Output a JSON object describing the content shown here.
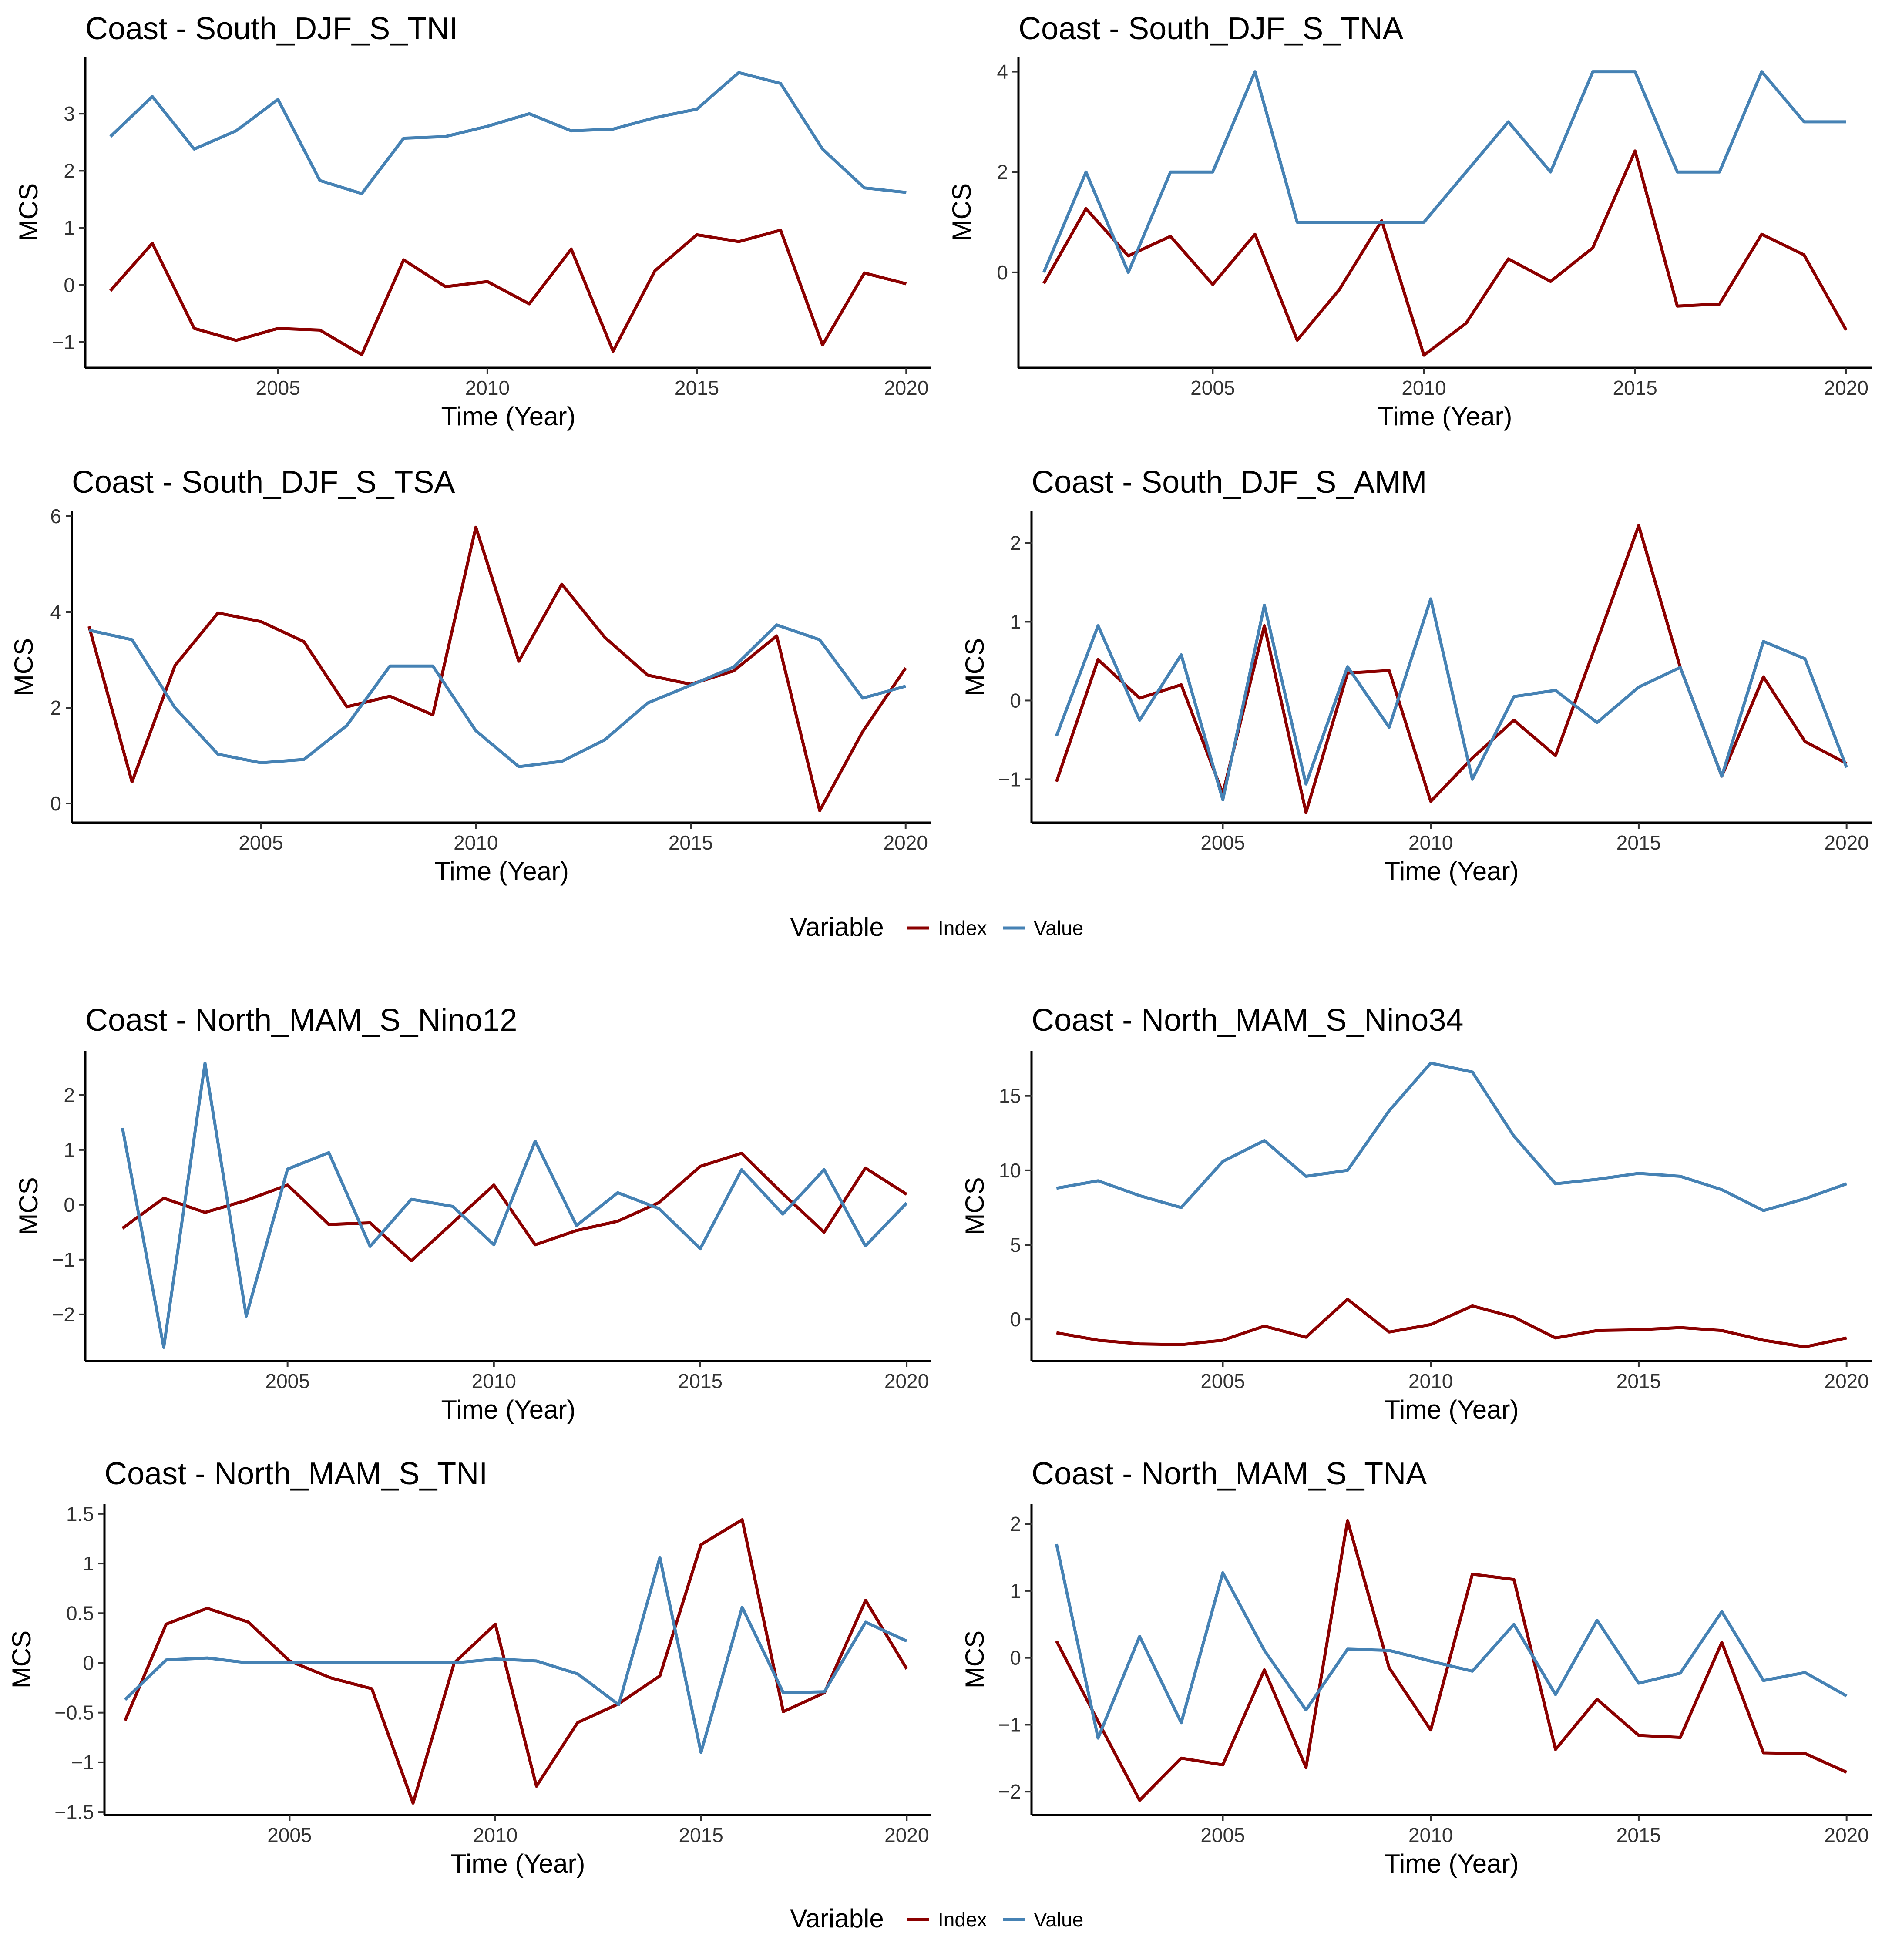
{
  "colors": {
    "Index": "#8b0000",
    "Value": "#4682b4"
  },
  "legends": [
    {
      "title": "Variable",
      "items": [
        {
          "name": "Index",
          "label": "Index"
        },
        {
          "name": "Value",
          "label": "Value"
        }
      ]
    },
    {
      "title": "Variable",
      "items": [
        {
          "name": "Index",
          "label": "Index"
        },
        {
          "name": "Value",
          "label": "Value"
        }
      ]
    }
  ],
  "chart_data": [
    {
      "type": "line",
      "title": "Coast - South_DJF_S_TNI",
      "xlabel": "Time (Year)",
      "ylabel": "MCS",
      "xlim": [
        2000.4,
        2020.6
      ],
      "ylim": [
        -1.45,
        4.0
      ],
      "xticks": [
        2005,
        2010,
        2015,
        2020
      ],
      "yticks": [
        -1,
        0,
        1,
        2,
        3
      ],
      "ytick_labels": [
        "−1",
        "0",
        "1",
        "2",
        "3"
      ],
      "x": [
        2001,
        2002,
        2003,
        2004,
        2005,
        2006,
        2007,
        2008,
        2009,
        2010,
        2011,
        2012,
        2013,
        2014,
        2015,
        2016,
        2017,
        2018,
        2019,
        2020
      ],
      "series": [
        {
          "name": "Index",
          "values": [
            -0.1,
            0.73,
            -0.76,
            -0.97,
            -0.76,
            -0.79,
            -1.22,
            0.44,
            -0.03,
            0.06,
            -0.33,
            0.63,
            -1.16,
            0.25,
            0.88,
            0.76,
            0.96,
            -1.05,
            0.21,
            0.02
          ]
        },
        {
          "name": "Value",
          "values": [
            2.6,
            3.3,
            2.38,
            2.7,
            3.25,
            1.83,
            1.6,
            2.57,
            2.6,
            2.78,
            3.0,
            2.7,
            2.73,
            2.93,
            3.08,
            3.72,
            3.53,
            2.38,
            1.7,
            1.62
          ]
        }
      ]
    },
    {
      "type": "line",
      "title": "Coast - South_DJF_S_TNA",
      "xlabel": "Time (Year)",
      "ylabel": "MCS",
      "xlim": [
        2000.4,
        2020.6
      ],
      "ylim": [
        -1.9,
        4.3
      ],
      "xticks": [
        2005,
        2010,
        2015,
        2020
      ],
      "yticks": [
        0,
        2,
        4
      ],
      "ytick_labels": [
        "0",
        "2",
        "4"
      ],
      "x": [
        2001,
        2002,
        2003,
        2004,
        2005,
        2006,
        2007,
        2008,
        2009,
        2010,
        2011,
        2012,
        2013,
        2014,
        2015,
        2016,
        2017,
        2018,
        2019,
        2020
      ],
      "series": [
        {
          "name": "Index",
          "values": [
            -0.22,
            1.27,
            0.33,
            0.72,
            -0.24,
            0.76,
            -1.35,
            -0.34,
            1.03,
            -1.65,
            -1.01,
            0.27,
            -0.18,
            0.49,
            2.42,
            -0.67,
            -0.63,
            0.76,
            0.35,
            -1.15
          ]
        },
        {
          "name": "Value",
          "values": [
            0,
            2,
            0,
            2,
            2,
            4,
            1,
            1,
            1,
            1,
            2,
            3,
            2,
            4,
            4,
            2,
            2,
            4,
            3,
            3
          ]
        }
      ]
    },
    {
      "type": "line",
      "title": "Coast - South_DJF_S_TSA",
      "xlabel": "Time (Year)",
      "ylabel": "MCS",
      "xlim": [
        2000.6,
        2020.6
      ],
      "ylim": [
        -0.4,
        6.1
      ],
      "xticks": [
        2005,
        2010,
        2015,
        2020
      ],
      "yticks": [
        0,
        2,
        4,
        6
      ],
      "ytick_labels": [
        "0",
        "2",
        "4",
        "6"
      ],
      "x": [
        2001,
        2002,
        2003,
        2004,
        2005,
        2006,
        2007,
        2008,
        2009,
        2010,
        2011,
        2012,
        2013,
        2014,
        2015,
        2016,
        2017,
        2018,
        2019,
        2020
      ],
      "series": [
        {
          "name": "Index",
          "values": [
            3.7,
            0.45,
            2.88,
            3.98,
            3.8,
            3.38,
            2.02,
            2.24,
            1.85,
            5.77,
            2.97,
            4.58,
            3.47,
            2.68,
            2.49,
            2.77,
            3.5,
            -0.15,
            1.5,
            2.83
          ]
        },
        {
          "name": "Value",
          "values": [
            3.62,
            3.42,
            2.0,
            1.03,
            0.85,
            0.92,
            1.63,
            2.87,
            2.87,
            1.52,
            0.77,
            0.88,
            1.33,
            2.1,
            2.47,
            2.85,
            3.73,
            3.42,
            2.2,
            2.45
          ]
        }
      ]
    },
    {
      "type": "line",
      "title": "Coast - South_DJF_S_AMM",
      "xlabel": "Time (Year)",
      "ylabel": "MCS",
      "xlim": [
        2000.4,
        2020.6
      ],
      "ylim": [
        -1.55,
        2.4
      ],
      "xticks": [
        2005,
        2010,
        2015,
        2020
      ],
      "yticks": [
        -1,
        0,
        1,
        2
      ],
      "ytick_labels": [
        "−1",
        "0",
        "1",
        "2"
      ],
      "x": [
        2001,
        2002,
        2003,
        2004,
        2005,
        2006,
        2007,
        2008,
        2009,
        2010,
        2011,
        2012,
        2013,
        2014,
        2015,
        2016,
        2017,
        2018,
        2019,
        2020
      ],
      "series": [
        {
          "name": "Index",
          "values": [
            -1.03,
            0.52,
            0.03,
            0.2,
            -1.18,
            0.95,
            -1.42,
            0.35,
            0.38,
            -1.28,
            -0.73,
            -0.25,
            -0.7,
            0.75,
            2.22,
            0.42,
            -0.96,
            0.3,
            -0.52,
            -0.8
          ]
        },
        {
          "name": "Value",
          "values": [
            -0.45,
            0.95,
            -0.25,
            0.58,
            -1.26,
            1.21,
            -1.06,
            0.43,
            -0.34,
            1.29,
            -1.0,
            0.05,
            0.13,
            -0.28,
            0.17,
            0.42,
            -0.96,
            0.75,
            0.53,
            -0.85
          ]
        }
      ]
    },
    {
      "type": "line",
      "title": "Coast - North_MAM_S_Nino12",
      "xlabel": "Time (Year)",
      "ylabel": "MCS",
      "xlim": [
        2000.1,
        2020.6
      ],
      "ylim": [
        -2.85,
        2.8
      ],
      "xticks": [
        2005,
        2010,
        2015,
        2020
      ],
      "yticks": [
        -2,
        -1,
        0,
        1,
        2
      ],
      "ytick_labels": [
        "−2",
        "−1",
        "0",
        "1",
        "2"
      ],
      "x": [
        2001,
        2002,
        2003,
        2004,
        2005,
        2006,
        2007,
        2008,
        2009,
        2010,
        2011,
        2012,
        2013,
        2014,
        2015,
        2016,
        2017,
        2018,
        2019,
        2020
      ],
      "series": [
        {
          "name": "Index",
          "values": [
            -0.43,
            0.12,
            -0.14,
            0.08,
            0.36,
            -0.36,
            -0.33,
            -1.02,
            -0.33,
            0.36,
            -0.73,
            -0.47,
            -0.3,
            0.04,
            0.7,
            0.94,
            0.2,
            -0.5,
            0.67,
            0.19
          ]
        },
        {
          "name": "Value",
          "values": [
            1.4,
            -2.6,
            2.58,
            -2.03,
            0.65,
            0.95,
            -0.76,
            0.1,
            -0.03,
            -0.73,
            1.16,
            -0.38,
            0.22,
            -0.07,
            -0.8,
            0.64,
            -0.17,
            0.64,
            -0.75,
            0.03
          ]
        }
      ]
    },
    {
      "type": "line",
      "title": "Coast - North_MAM_S_Nino34",
      "xlabel": "Time (Year)",
      "ylabel": "MCS",
      "xlim": [
        2000.4,
        2020.6
      ],
      "ylim": [
        -2.8,
        18.0
      ],
      "xticks": [
        2005,
        2010,
        2015,
        2020
      ],
      "yticks": [
        0,
        5,
        10,
        15
      ],
      "ytick_labels": [
        "0",
        "5",
        "10",
        "15"
      ],
      "x": [
        2001,
        2002,
        2003,
        2004,
        2005,
        2006,
        2007,
        2008,
        2009,
        2010,
        2011,
        2012,
        2013,
        2014,
        2015,
        2016,
        2017,
        2018,
        2019,
        2020
      ],
      "series": [
        {
          "name": "Index",
          "values": [
            -0.9,
            -1.4,
            -1.65,
            -1.7,
            -1.4,
            -0.45,
            -1.2,
            1.35,
            -0.85,
            -0.35,
            0.9,
            0.15,
            -1.25,
            -0.75,
            -0.7,
            -0.55,
            -0.75,
            -1.4,
            -1.85,
            -1.25
          ]
        },
        {
          "name": "Value",
          "values": [
            8.8,
            9.3,
            8.3,
            7.5,
            10.6,
            12.0,
            9.6,
            10.0,
            14.0,
            17.2,
            16.6,
            12.3,
            9.1,
            9.4,
            9.8,
            9.6,
            8.7,
            7.3,
            8.1,
            9.1
          ]
        }
      ]
    },
    {
      "type": "line",
      "title": "Coast - North_MAM_S_TNI",
      "xlabel": "Time (Year)",
      "ylabel": "MCS",
      "xlim": [
        2000.5,
        2020.6
      ],
      "ylim": [
        -1.53,
        1.6
      ],
      "xticks": [
        2005,
        2010,
        2015,
        2020
      ],
      "yticks": [
        -1.5,
        -1,
        -0.5,
        0,
        0.5,
        1,
        1.5
      ],
      "ytick_labels": [
        "−1.5",
        "−1",
        "−0.5",
        "0",
        "0.5",
        "1",
        "1.5"
      ],
      "x": [
        2001,
        2002,
        2003,
        2004,
        2005,
        2006,
        2007,
        2008,
        2009,
        2010,
        2011,
        2012,
        2013,
        2014,
        2015,
        2016,
        2017,
        2018,
        2019,
        2020
      ],
      "series": [
        {
          "name": "Index",
          "values": [
            -0.58,
            0.39,
            0.55,
            0.41,
            0.02,
            -0.15,
            -0.26,
            -1.41,
            0.0,
            0.39,
            -1.24,
            -0.6,
            -0.41,
            -0.13,
            1.19,
            1.44,
            -0.49,
            -0.3,
            0.63,
            -0.06
          ]
        },
        {
          "name": "Value",
          "values": [
            -0.37,
            0.03,
            0.05,
            0.0,
            0.0,
            0.0,
            0.0,
            0.0,
            0.0,
            0.04,
            0.02,
            -0.11,
            -0.42,
            1.06,
            -0.9,
            0.56,
            -0.3,
            -0.29,
            0.41,
            0.22
          ]
        }
      ]
    },
    {
      "type": "line",
      "title": "Coast - North_MAM_S_TNA",
      "xlabel": "Time (Year)",
      "ylabel": "MCS",
      "xlim": [
        2000.4,
        2020.6
      ],
      "ylim": [
        -2.35,
        2.3
      ],
      "xticks": [
        2005,
        2010,
        2015,
        2020
      ],
      "yticks": [
        -2,
        -1,
        0,
        1,
        2
      ],
      "ytick_labels": [
        "−2",
        "−1",
        "0",
        "1",
        "2"
      ],
      "x": [
        2001,
        2002,
        2003,
        2004,
        2005,
        2006,
        2007,
        2008,
        2009,
        2010,
        2011,
        2012,
        2013,
        2014,
        2015,
        2016,
        2017,
        2018,
        2019,
        2020
      ],
      "series": [
        {
          "name": "Index",
          "values": [
            0.25,
            -0.95,
            -2.13,
            -1.5,
            -1.6,
            -0.18,
            -1.64,
            2.05,
            -0.15,
            -1.08,
            1.25,
            1.17,
            -1.37,
            -0.62,
            -1.16,
            -1.19,
            0.23,
            -1.42,
            -1.43,
            -1.71
          ]
        },
        {
          "name": "Value",
          "values": [
            1.7,
            -1.2,
            0.32,
            -0.97,
            1.27,
            0.11,
            -0.78,
            0.13,
            0.11,
            -0.05,
            -0.2,
            0.5,
            -0.55,
            0.56,
            -0.38,
            -0.23,
            0.69,
            -0.34,
            -0.22,
            -0.57
          ]
        }
      ]
    }
  ]
}
